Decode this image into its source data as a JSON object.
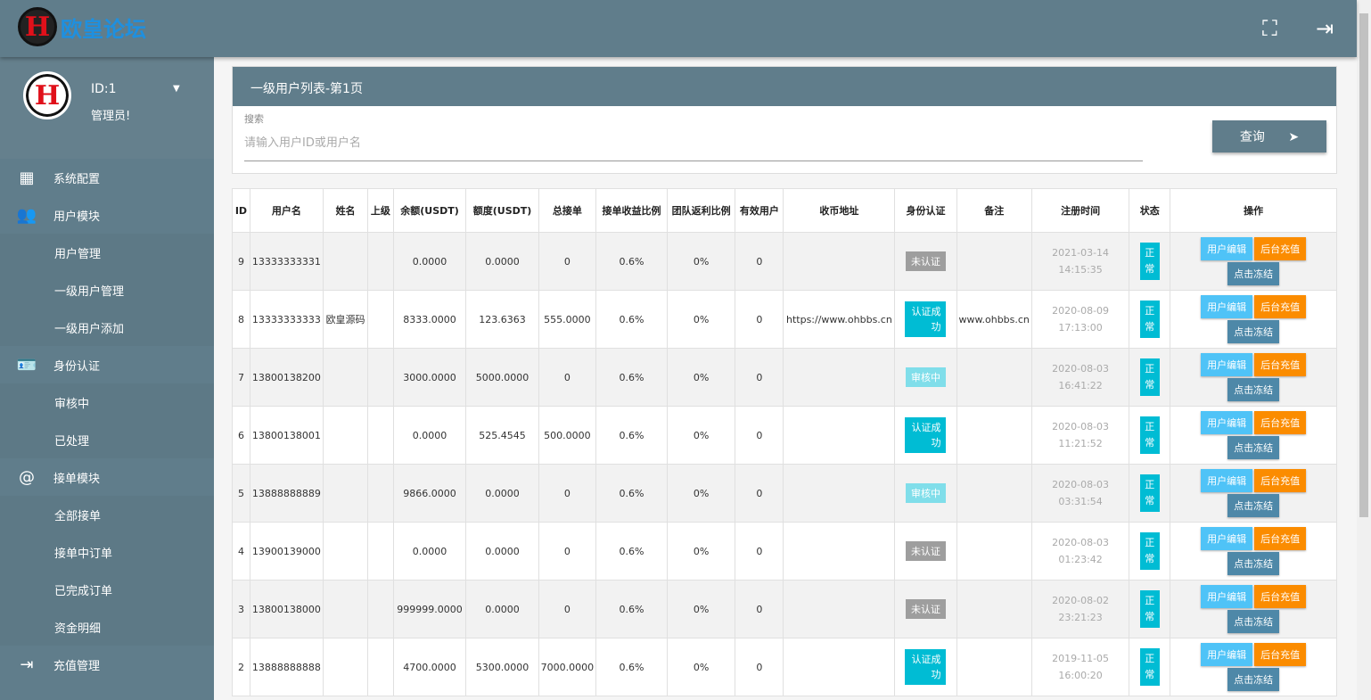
{
  "header": {
    "logo_text": "欧皇论坛",
    "fullscreen_icon": "fullscreen-icon",
    "logout_icon": "logout-icon"
  },
  "sidebar": {
    "user_id": "ID:1",
    "role": "管理员!",
    "items": [
      {
        "label": "系统配置",
        "icon": "dashboard-icon",
        "sub": false
      },
      {
        "label": "用户模块",
        "icon": "users-icon",
        "sub": false
      },
      {
        "label": "用户管理",
        "sub": true
      },
      {
        "label": "一级用户管理",
        "sub": true
      },
      {
        "label": "一级用户添加",
        "sub": true
      },
      {
        "label": "身份认证",
        "icon": "id-badge-icon",
        "sub": false
      },
      {
        "label": "审核中",
        "sub": true
      },
      {
        "label": "已处理",
        "sub": true
      },
      {
        "label": "接单模块",
        "icon": "at-icon",
        "sub": false
      },
      {
        "label": "全部接单",
        "sub": true
      },
      {
        "label": "接单中订单",
        "sub": true
      },
      {
        "label": "已完成订单",
        "sub": true
      },
      {
        "label": "资金明细",
        "sub": true
      },
      {
        "label": "充值管理",
        "icon": "login-icon",
        "sub": false
      }
    ]
  },
  "main": {
    "title": "一级用户列表-第1页",
    "search_label": "搜索",
    "search_placeholder": "请输入用户ID或用户名",
    "search_value": "",
    "query_label": "查询"
  },
  "table": {
    "headers": [
      "ID",
      "用户名",
      "姓名",
      "上级",
      "余额(USDT)",
      "额度(USDT)",
      "总接单",
      "接单收益比例",
      "团队返利比例",
      "有效用户",
      "收币地址",
      "身份认证",
      "备注",
      "注册时间",
      "状态",
      "操作"
    ],
    "actions": {
      "edit": "用户编辑",
      "charge": "后台充值",
      "freeze": "点击冻结"
    },
    "rows": [
      {
        "id": "9",
        "username": "13333333331",
        "name": "",
        "parent": "",
        "balance": "0.0000",
        "quota": "0.0000",
        "total": "0",
        "ratio": "0.6%",
        "team": "0%",
        "valid": "0",
        "address": "",
        "auth": "未认证",
        "auth_type": "gray",
        "note": "",
        "date": "2021-03-14",
        "time": "14:15:35",
        "status": "正常"
      },
      {
        "id": "8",
        "username": "13333333333",
        "name": "欧皇源码",
        "parent": "",
        "balance": "8333.0000",
        "quota": "123.6363",
        "total": "555.0000",
        "ratio": "0.6%",
        "team": "0%",
        "valid": "0",
        "address": "https://www.ohbbs.cn",
        "auth": "认证成功",
        "auth_type": "cyan",
        "note": "www.ohbbs.cn",
        "date": "2020-08-09",
        "time": "17:13:00",
        "status": "正常"
      },
      {
        "id": "7",
        "username": "13800138200",
        "name": "",
        "parent": "",
        "balance": "3000.0000",
        "quota": "5000.0000",
        "total": "0",
        "ratio": "0.6%",
        "team": "0%",
        "valid": "0",
        "address": "",
        "auth": "审核中",
        "auth_type": "light",
        "note": "",
        "date": "2020-08-03",
        "time": "16:41:22",
        "status": "正常"
      },
      {
        "id": "6",
        "username": "13800138001",
        "name": "",
        "parent": "",
        "balance": "0.0000",
        "quota": "525.4545",
        "total": "500.0000",
        "ratio": "0.6%",
        "team": "0%",
        "valid": "0",
        "address": "",
        "auth": "认证成功",
        "auth_type": "cyan",
        "note": "",
        "date": "2020-08-03",
        "time": "11:21:52",
        "status": "正常"
      },
      {
        "id": "5",
        "username": "13888888889",
        "name": "",
        "parent": "",
        "balance": "9866.0000",
        "quota": "0.0000",
        "total": "0",
        "ratio": "0.6%",
        "team": "0%",
        "valid": "0",
        "address": "",
        "auth": "审核中",
        "auth_type": "light",
        "note": "",
        "date": "2020-08-03",
        "time": "03:31:54",
        "status": "正常"
      },
      {
        "id": "4",
        "username": "13900139000",
        "name": "",
        "parent": "",
        "balance": "0.0000",
        "quota": "0.0000",
        "total": "0",
        "ratio": "0.6%",
        "team": "0%",
        "valid": "0",
        "address": "",
        "auth": "未认证",
        "auth_type": "gray",
        "note": "",
        "date": "2020-08-03",
        "time": "01:23:42",
        "status": "正常"
      },
      {
        "id": "3",
        "username": "13800138000",
        "name": "",
        "parent": "",
        "balance": "999999.0000",
        "quota": "0.0000",
        "total": "0",
        "ratio": "0.6%",
        "team": "0%",
        "valid": "0",
        "address": "",
        "auth": "未认证",
        "auth_type": "gray",
        "note": "",
        "date": "2020-08-02",
        "time": "23:21:23",
        "status": "正常"
      },
      {
        "id": "2",
        "username": "13888888888",
        "name": "",
        "parent": "",
        "balance": "4700.0000",
        "quota": "5300.0000",
        "total": "7000.0000",
        "ratio": "0.6%",
        "team": "0%",
        "valid": "0",
        "address": "",
        "auth": "认证成功",
        "auth_type": "cyan",
        "note": "",
        "date": "2019-11-05",
        "time": "16:00:20",
        "status": "正常"
      }
    ]
  },
  "colors": {
    "primary": "#607d8b",
    "edit": "#4fc3f7",
    "charge": "#fb8c00",
    "freeze": "#4e88a8",
    "auth_ok": "#00bcd4",
    "auth_pending": "#80deea",
    "auth_none": "#9e9e9e"
  }
}
